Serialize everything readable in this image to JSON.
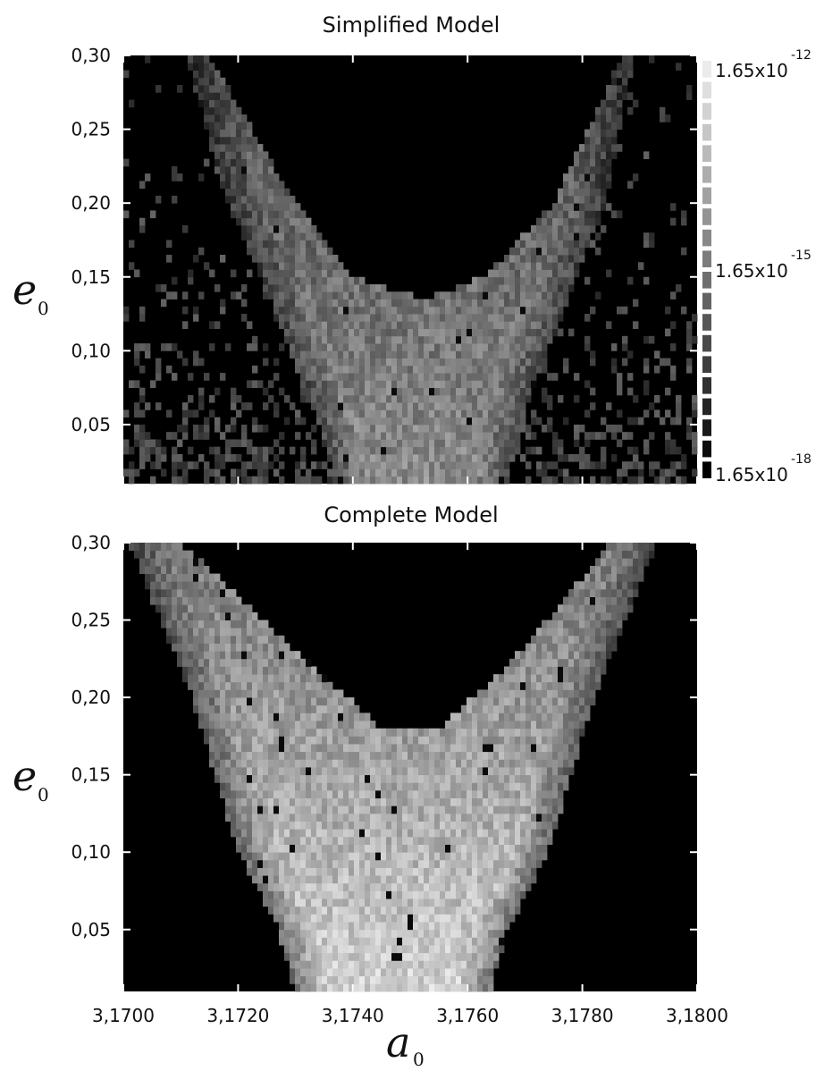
{
  "axis_text": {
    "e_symbol": "e",
    "e_subscript": "0",
    "a_symbol": "a",
    "a_subscript": "0"
  },
  "colorbar": {
    "steps": 20,
    "labels": [
      {
        "mantissa": "1.65x10",
        "exponent": "-12",
        "level": 1.0
      },
      {
        "mantissa": "1.65x10",
        "exponent": "-15",
        "level": 0.5
      },
      {
        "mantissa": "1.65x10",
        "exponent": "-18",
        "level": 0.0
      }
    ]
  },
  "chart_data": [
    {
      "type": "heatmap",
      "title": "Simplified Model",
      "xlabel": "a0",
      "ylabel": "e0",
      "xlim": [
        3.17,
        3.18
      ],
      "ylim": [
        0.01,
        0.3
      ],
      "x_ticks": [
        3.17,
        3.172,
        3.174,
        3.176,
        3.178,
        3.18
      ],
      "y_ticks": [
        0.05,
        0.1,
        0.15,
        0.2,
        0.25,
        0.3
      ],
      "y_tick_labels": [
        "0,05",
        "0,10",
        "0,15",
        "0,20",
        "0,25",
        "0,30"
      ],
      "colorscale": "grayscale (black = low, white = high)",
      "feature": "V-shaped bright region with minimum near a0 = 3,1750",
      "boundary_left": [
        [
          3.1711,
          0.3
        ],
        [
          3.1718,
          0.2
        ],
        [
          3.1724,
          0.15
        ],
        [
          3.1729,
          0.1
        ],
        [
          3.1734,
          0.05
        ],
        [
          3.1737,
          0.01
        ]
      ],
      "boundary_right": [
        [
          3.1789,
          0.3
        ],
        [
          3.1784,
          0.2
        ],
        [
          3.1779,
          0.15
        ],
        [
          3.1774,
          0.1
        ],
        [
          3.1769,
          0.05
        ],
        [
          3.1767,
          0.01
        ]
      ],
      "inner_boundary": [
        [
          3.1715,
          0.3
        ],
        [
          3.173,
          0.2
        ],
        [
          3.174,
          0.15
        ],
        [
          3.1752,
          0.135
        ],
        [
          3.1763,
          0.15
        ],
        [
          3.1775,
          0.2
        ],
        [
          3.1787,
          0.3
        ]
      ],
      "scattered_outer_noise": true
    },
    {
      "type": "heatmap",
      "title": "Complete Model",
      "xlabel": "a0",
      "ylabel": "e0",
      "xlim": [
        3.17,
        3.18
      ],
      "ylim": [
        0.01,
        0.3
      ],
      "x_ticks": [
        3.17,
        3.172,
        3.174,
        3.176,
        3.178,
        3.18
      ],
      "x_tick_labels": [
        "3,1700",
        "3,1720",
        "3,1740",
        "3,1760",
        "3,1780",
        "3,1800"
      ],
      "y_ticks": [
        0.05,
        0.1,
        0.15,
        0.2,
        0.25,
        0.3
      ],
      "y_tick_labels": [
        "0,05",
        "0,10",
        "0,15",
        "0,20",
        "0,25",
        "0,30"
      ],
      "colorscale": "grayscale (black = low, white = high)",
      "feature": "V-shaped bright region with minimum near a0 = 3,1750, brighter than simplified model",
      "boundary_left": [
        [
          3.1701,
          0.3
        ],
        [
          3.1712,
          0.2
        ],
        [
          3.172,
          0.1
        ],
        [
          3.1727,
          0.05
        ],
        [
          3.173,
          0.01
        ]
      ],
      "boundary_right": [
        [
          3.1793,
          0.3
        ],
        [
          3.1782,
          0.2
        ],
        [
          3.1774,
          0.1
        ],
        [
          3.1767,
          0.05
        ],
        [
          3.1764,
          0.01
        ]
      ],
      "inner_boundary": [
        [
          3.171,
          0.3
        ],
        [
          3.173,
          0.23
        ],
        [
          3.1745,
          0.18
        ],
        [
          3.1755,
          0.18
        ],
        [
          3.1767,
          0.22
        ],
        [
          3.1785,
          0.3
        ]
      ],
      "scattered_outer_noise": false
    }
  ]
}
